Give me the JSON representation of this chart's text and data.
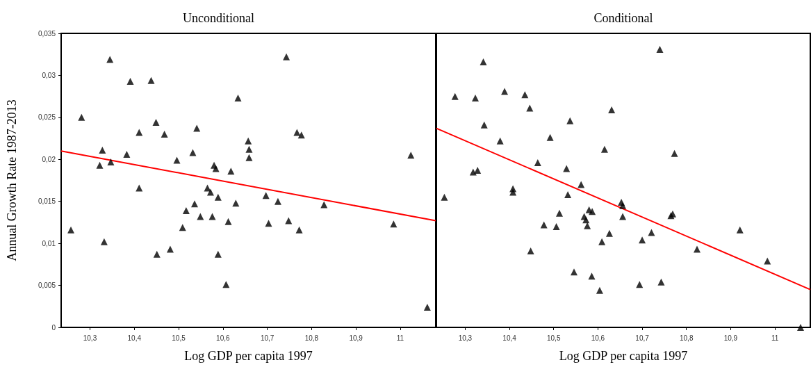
{
  "chart_data": [
    {
      "type": "scatter",
      "title": "Unconditional",
      "xlabel": "Log GDP per capita 1997",
      "ylabel": "Annual Growth Rate 1987-2013",
      "marker": "triangle",
      "grid": false,
      "xlim": [
        10.235,
        11.08
      ],
      "ylim": [
        0,
        0.035
      ],
      "xticks": [
        {
          "value": 10.3,
          "label": "10,3"
        },
        {
          "value": 10.4,
          "label": "10,4"
        },
        {
          "value": 10.5,
          "label": "10,5"
        },
        {
          "value": 10.6,
          "label": "10,6"
        },
        {
          "value": 10.7,
          "label": "10,7"
        },
        {
          "value": 10.8,
          "label": "10,8"
        },
        {
          "value": 10.9,
          "label": "10,9"
        },
        11
      ],
      "yticks": [
        0,
        {
          "value": 0.005,
          "label": "0,005"
        },
        {
          "value": 0.01,
          "label": "0,01"
        },
        {
          "value": 0.015,
          "label": "0,015"
        },
        {
          "value": 0.02,
          "label": "0,02"
        },
        {
          "value": 0.025,
          "label": "0,025"
        },
        {
          "value": 0.03,
          "label": "0,03"
        },
        {
          "value": 0.035,
          "label": "0,035"
        }
      ],
      "series": [
        {
          "color": "#000000",
          "x": [
            10.345,
            10.743,
            10.391,
            10.438,
            10.634,
            10.281,
            10.449,
            10.411,
            10.468,
            10.541,
            10.767,
            10.777,
            10.657,
            10.659,
            10.659,
            10.328,
            10.383,
            10.532,
            10.496,
            11.024,
            10.322,
            10.347,
            10.58,
            10.584,
            10.618,
            10.411,
            10.565,
            10.572,
            10.589,
            10.536,
            10.517,
            10.549,
            10.576,
            10.629,
            10.697,
            10.724,
            10.828,
            10.612,
            10.703,
            10.748,
            10.772,
            10.985,
            10.257,
            10.332,
            10.509,
            10.451,
            10.481,
            10.589,
            10.607,
            11.061
          ],
          "values": [
            0.0319,
            0.0322,
            0.0293,
            0.0294,
            0.0273,
            0.025,
            0.0244,
            0.0232,
            0.023,
            0.0237,
            0.0232,
            0.0229,
            0.0222,
            0.0212,
            0.0202,
            0.0211,
            0.0206,
            0.0208,
            0.0199,
            0.0205,
            0.0193,
            0.0197,
            0.0193,
            0.0189,
            0.0186,
            0.0166,
            0.0166,
            0.0161,
            0.0155,
            0.0147,
            0.0139,
            0.0132,
            0.0132,
            0.0148,
            0.0157,
            0.015,
            0.0146,
            0.0126,
            0.0124,
            0.0127,
            0.0116,
            0.0123,
            0.0116,
            0.0102,
            0.0119,
            0.0087,
            0.0093,
            0.0087,
            0.0051,
            0.0024
          ]
        },
        {
          "type": "line",
          "color": "#ff0000",
          "marker": "none",
          "x": [
            10.235,
            11.08
          ],
          "values": [
            0.021,
            0.0127
          ]
        }
      ]
    },
    {
      "type": "scatter",
      "title": "Conditional",
      "xlabel": "Log GDP per capita 1997",
      "marker": "triangle",
      "grid": false,
      "tick_labels": "x",
      "xlim": [
        10.235,
        11.08
      ],
      "ylim": [
        0,
        0.035
      ],
      "xticks": [
        {
          "value": 10.3,
          "label": "10,3"
        },
        {
          "value": 10.4,
          "label": "10,4"
        },
        {
          "value": 10.5,
          "label": "10,5"
        },
        {
          "value": 10.6,
          "label": "10,6"
        },
        {
          "value": 10.7,
          "label": "10,7"
        },
        {
          "value": 10.8,
          "label": "10,8"
        },
        {
          "value": 10.9,
          "label": "10,9"
        },
        11
      ],
      "yticks": [
        {
          "value": 0,
          "label": null
        },
        {
          "value": 0.005,
          "label": null
        },
        {
          "value": 0.01,
          "label": null
        },
        {
          "value": 0.015,
          "label": null
        },
        {
          "value": 0.02,
          "label": null
        },
        {
          "value": 0.025,
          "label": null
        },
        {
          "value": 0.03,
          "label": null
        },
        {
          "value": 0.035,
          "label": null
        }
      ],
      "series": [
        {
          "color": "#000000",
          "x": [
            10.74,
            10.341,
            10.277,
            10.323,
            10.389,
            10.435,
            10.446,
            10.631,
            10.343,
            10.537,
            10.379,
            10.492,
            10.615,
            10.773,
            10.464,
            10.529,
            10.318,
            10.328,
            10.562,
            10.408,
            10.408,
            10.253,
            10.532,
            10.653,
            10.656,
            10.656,
            10.58,
            10.587,
            10.569,
            10.573,
            10.576,
            10.513,
            10.478,
            10.506,
            10.765,
            10.769,
            10.626,
            10.609,
            10.7,
            10.721,
            10.824,
            10.921,
            10.983,
            10.448,
            10.546,
            10.586,
            10.604,
            10.694,
            10.743,
            11.058
          ],
          "values": [
            0.0331,
            0.0316,
            0.0275,
            0.0273,
            0.0281,
            0.0277,
            0.0261,
            0.0259,
            0.0241,
            0.0246,
            0.0222,
            0.0226,
            0.0212,
            0.0207,
            0.0196,
            0.0189,
            0.0185,
            0.0187,
            0.017,
            0.0165,
            0.0161,
            0.0155,
            0.0158,
            0.0149,
            0.0145,
            0.0132,
            0.014,
            0.0138,
            0.0132,
            0.0128,
            0.0121,
            0.0136,
            0.0122,
            0.012,
            0.0133,
            0.0135,
            0.0112,
            0.0102,
            0.0104,
            0.0113,
            0.0093,
            0.0116,
            0.0079,
            0.0091,
            0.0066,
            0.0061,
            0.0044,
            0.0051,
            0.0054,
            0
          ]
        },
        {
          "type": "line",
          "color": "#ff0000",
          "marker": "none",
          "x": [
            10.235,
            11.08
          ],
          "values": [
            0.0237,
            0.0045
          ]
        }
      ]
    }
  ]
}
